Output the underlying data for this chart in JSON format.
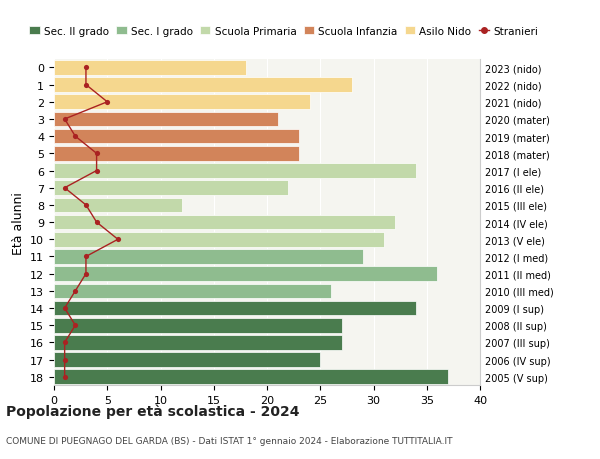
{
  "ages": [
    18,
    17,
    16,
    15,
    14,
    13,
    12,
    11,
    10,
    9,
    8,
    7,
    6,
    5,
    4,
    3,
    2,
    1,
    0
  ],
  "bar_values": [
    37,
    25,
    27,
    27,
    34,
    26,
    36,
    29,
    31,
    32,
    12,
    22,
    34,
    23,
    23,
    21,
    24,
    28,
    18
  ],
  "bar_colors": [
    "#4a7c4e",
    "#4a7c4e",
    "#4a7c4e",
    "#4a7c4e",
    "#4a7c4e",
    "#8fbc8f",
    "#8fbc8f",
    "#8fbc8f",
    "#c2d9aa",
    "#c2d9aa",
    "#c2d9aa",
    "#c2d9aa",
    "#c2d9aa",
    "#d2845a",
    "#d2845a",
    "#d2845a",
    "#f5d78e",
    "#f5d78e",
    "#f5d78e"
  ],
  "stranieri_values": [
    1,
    1,
    1,
    2,
    1,
    2,
    3,
    3,
    6,
    4,
    3,
    1,
    4,
    4,
    2,
    1,
    5,
    3,
    3
  ],
  "right_labels": [
    "2005 (V sup)",
    "2006 (IV sup)",
    "2007 (III sup)",
    "2008 (II sup)",
    "2009 (I sup)",
    "2010 (III med)",
    "2011 (II med)",
    "2012 (I med)",
    "2013 (V ele)",
    "2014 (IV ele)",
    "2015 (III ele)",
    "2016 (II ele)",
    "2017 (I ele)",
    "2018 (mater)",
    "2019 (mater)",
    "2020 (mater)",
    "2021 (nido)",
    "2022 (nido)",
    "2023 (nido)"
  ],
  "legend_labels": [
    "Sec. II grado",
    "Sec. I grado",
    "Scuola Primaria",
    "Scuola Infanzia",
    "Asilo Nido",
    "Stranieri"
  ],
  "legend_colors": [
    "#4a7c4e",
    "#8fbc8f",
    "#c2d9aa",
    "#d2845a",
    "#f5d78e",
    "#aa2222"
  ],
  "ylabel_left": "Età alunni",
  "title": "Popolazione per età scolastica - 2024",
  "subtitle": "COMUNE DI PUEGNAGO DEL GARDA (BS) - Dati ISTAT 1° gennaio 2024 - Elaborazione TUTTITALIA.IT",
  "xlim": [
    0,
    40
  ],
  "background_color": "#ffffff",
  "stranieri_color": "#aa2222",
  "grid_color": "#e8e8e8",
  "bar_face_bg": "#f5f5f0"
}
